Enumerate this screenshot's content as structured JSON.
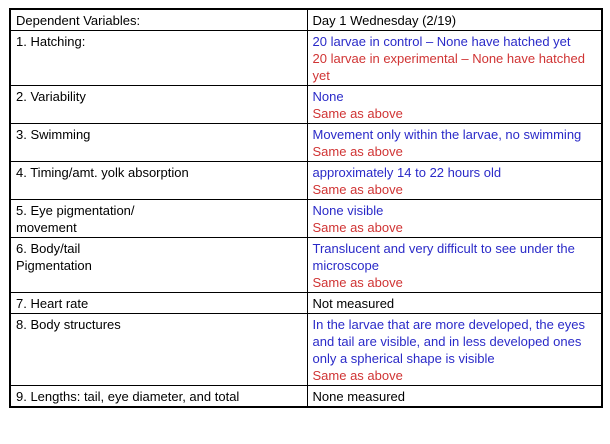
{
  "colors": {
    "blue": "#2A2AC8",
    "red": "#D03434",
    "text": "#000000",
    "border": "#000000",
    "background": "#FFFFFF"
  },
  "table": {
    "header": {
      "dependent_variables": "Dependent Variables:",
      "day_column": "Day 1 Wednesday (2/19)"
    },
    "rows": [
      {
        "variable": "1. Hatching:",
        "entries": [
          {
            "text": "20 larvae in control – None have hatched yet",
            "color": "blue"
          },
          {
            "text": "20 larvae in experimental – None have hatched yet",
            "color": "red"
          }
        ]
      },
      {
        "variable": "2. Variability",
        "entries": [
          {
            "text": "None",
            "color": "blue"
          },
          {
            "text": "Same as above",
            "color": "red"
          }
        ]
      },
      {
        "variable": "3. Swimming",
        "entries": [
          {
            "text": "Movement only within the larvae, no swimming",
            "color": "blue"
          },
          {
            "text": "Same as above",
            "color": "red"
          }
        ]
      },
      {
        "variable": "4. Timing/amt. yolk absorption",
        "entries": [
          {
            "text": "approximately 14 to 22 hours old",
            "color": "blue"
          },
          {
            "text": "Same as above",
            "color": "red"
          }
        ]
      },
      {
        "variable": "5. Eye pigmentation/\nmovement",
        "entries": [
          {
            "text": "None visible",
            "color": "blue"
          },
          {
            "text": "Same as above",
            "color": "red"
          }
        ]
      },
      {
        "variable": "6. Body/tail\nPigmentation",
        "entries": [
          {
            "text": "Translucent and very difficult to see under the microscope",
            "color": "blue"
          },
          {
            "text": "Same as above",
            "color": "red"
          }
        ]
      },
      {
        "variable": "7. Heart rate",
        "entries": [
          {
            "text": "Not measured",
            "color": "black"
          }
        ]
      },
      {
        "variable": "8. Body structures",
        "entries": [
          {
            "text": "In the larvae that are more developed, the eyes and tail are visible, and in less developed ones only a spherical shape is visible",
            "color": "blue"
          },
          {
            "text": "Same as above",
            "color": "red"
          }
        ]
      },
      {
        "variable": "9. Lengths: tail, eye diameter, and total",
        "entries": [
          {
            "text": "None measured",
            "color": "black"
          }
        ]
      }
    ]
  }
}
